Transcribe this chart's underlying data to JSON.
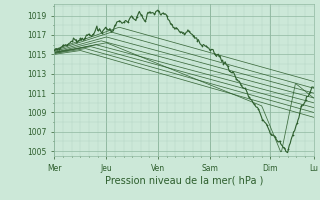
{
  "title": "",
  "xlabel": "Pression niveau de la mer( hPa )",
  "background_color": "#cce8d8",
  "plot_bg_color": "#cce8d8",
  "grid_color_major": "#90b8a0",
  "grid_color_minor": "#b0d0c0",
  "line_color": "#2d5e2d",
  "ylim": [
    1004.5,
    1020.2
  ],
  "yticks": [
    1005,
    1007,
    1009,
    1011,
    1013,
    1015,
    1017,
    1019
  ],
  "day_labels": [
    "Mer",
    "Jeu",
    "Ven",
    "Sam",
    "Dim",
    "Lu"
  ],
  "day_positions_norm": [
    0.0,
    0.2,
    0.4,
    0.6,
    0.833,
    1.0
  ],
  "num_points": 300,
  "font_color": "#2d5e2d",
  "font_size_tick": 5.5,
  "font_size_xlabel": 7.0
}
